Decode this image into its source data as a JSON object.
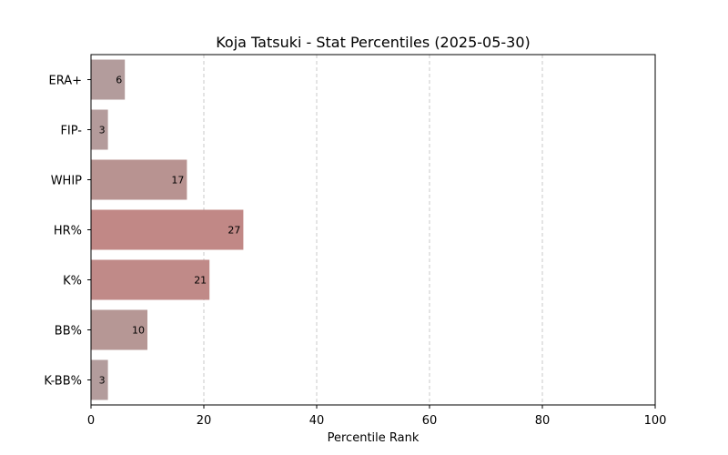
{
  "chart_data": {
    "type": "bar",
    "orientation": "horizontal",
    "title": "Koja Tatsuki - Stat Percentiles (2025-05-30)",
    "xlabel": "Percentile Rank",
    "ylabel": "",
    "xlim": [
      0,
      100
    ],
    "x_ticks": [
      "0",
      "20",
      "40",
      "60",
      "80",
      "100"
    ],
    "grid": "vertical dashed",
    "categories": [
      "ERA+",
      "FIP-",
      "WHIP",
      "HR%",
      "K%",
      "BB%",
      "K-BB%"
    ],
    "values": [
      6,
      3,
      17,
      27,
      21,
      10,
      3
    ],
    "value_labels": [
      "6",
      "3",
      "17",
      "27",
      "21",
      "10",
      "3"
    ],
    "bar_colors": [
      "#b39c9c",
      "#b49b9b",
      "#b89391",
      "#c18886",
      "#c08a88",
      "#b69795",
      "#b39c9c"
    ]
  }
}
